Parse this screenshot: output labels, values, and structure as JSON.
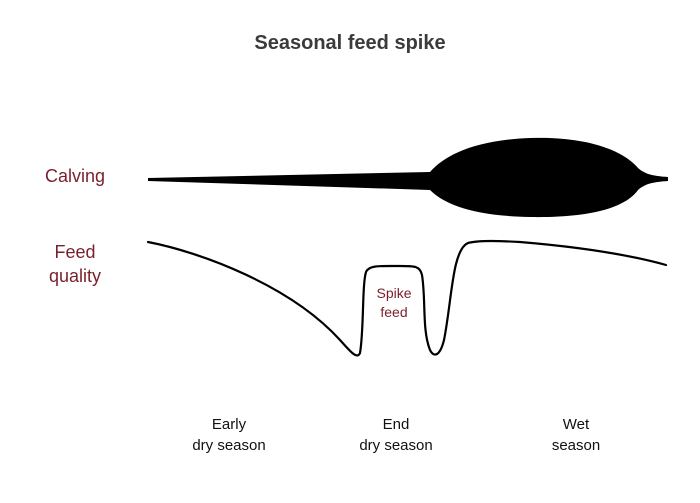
{
  "title": "Seasonal feed spike",
  "row_labels": {
    "calving": "Calving",
    "feed_quality_line1": "Feed",
    "feed_quality_line2": "quality"
  },
  "annotation": {
    "line1": "Spike",
    "line2": "feed"
  },
  "seasons": [
    {
      "line1": "Early",
      "line2": "dry season"
    },
    {
      "line1": "End",
      "line2": "dry season"
    },
    {
      "line1": "Wet",
      "line2": "season"
    }
  ],
  "colors": {
    "title": "#3b3b3b",
    "label_accent": "#7a1f2b",
    "shape_fill": "#000000"
  }
}
